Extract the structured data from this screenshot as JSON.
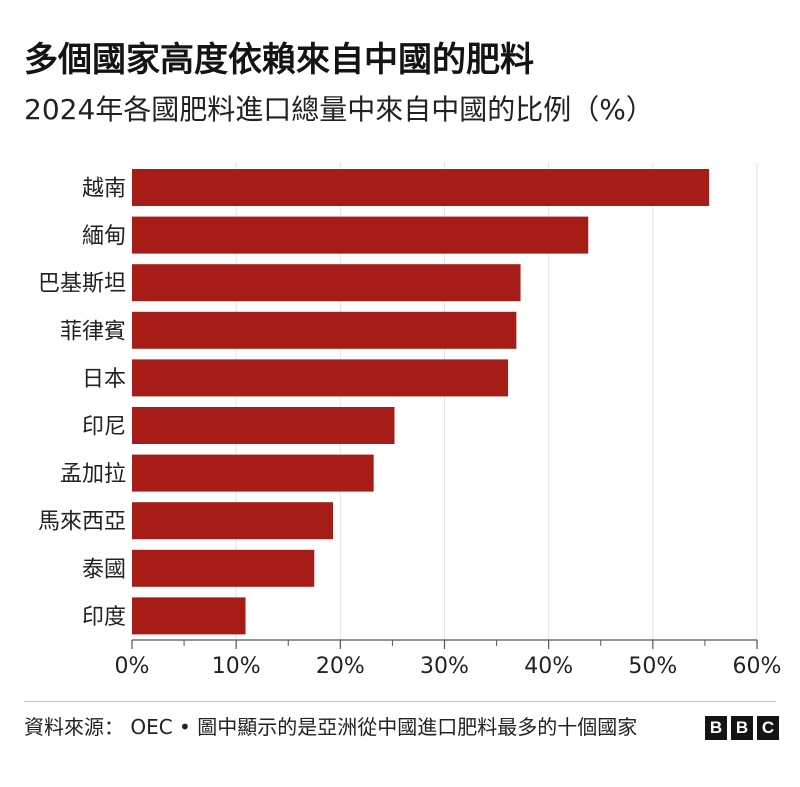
{
  "title": "多個國家高度依賴來自中國的肥料",
  "subtitle": "2024年各國肥料進口總量中來自中國的比例（%）",
  "source": "資料來源： OEC • 圖中顯示的是亞洲從中國進口肥料最多的十個國家",
  "logo": [
    "B",
    "B",
    "C"
  ],
  "colors": {
    "bar": "#a61d17",
    "grid": "#e3e3e3",
    "axis": "#555555",
    "text": "#222222"
  },
  "chart_data": {
    "type": "bar",
    "orientation": "horizontal",
    "categories": [
      "越南",
      "緬甸",
      "巴基斯坦",
      "菲律賓",
      "日本",
      "印尼",
      "孟加拉",
      "馬來西亞",
      "泰國",
      "印度"
    ],
    "values": [
      55.4,
      43.8,
      37.3,
      36.9,
      36.1,
      25.2,
      23.2,
      19.3,
      17.5,
      10.9
    ],
    "xlim": [
      0,
      60
    ],
    "xticks": [
      0,
      10,
      20,
      30,
      40,
      50,
      60
    ],
    "xtick_labels": [
      "0%",
      "10%",
      "20%",
      "30%",
      "40%",
      "50%",
      "60%"
    ],
    "grid": true,
    "legend": "none"
  }
}
